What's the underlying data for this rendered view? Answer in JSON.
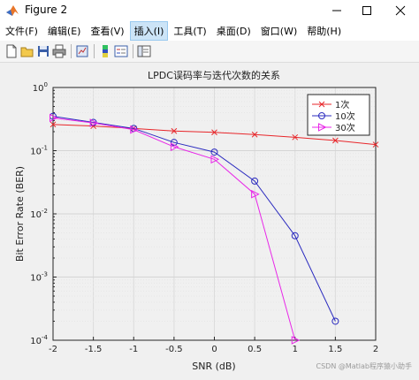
{
  "window": {
    "title": "Figure 2",
    "minimize_icon": "minimize-icon",
    "maximize_icon": "maximize-icon",
    "close_icon": "close-icon"
  },
  "menu": [
    {
      "label": "文件(F)"
    },
    {
      "label": "编辑(E)"
    },
    {
      "label": "查看(V)"
    },
    {
      "label": "插入(I)",
      "active": true
    },
    {
      "label": "工具(T)"
    },
    {
      "label": "桌面(D)"
    },
    {
      "label": "窗口(W)"
    },
    {
      "label": "帮助(H)"
    }
  ],
  "toolbar": {
    "buttons": [
      "new-figure-icon",
      "open-file-icon",
      "save-icon",
      "print-icon",
      "link-plot-icon",
      "insert-colorbar-icon",
      "insert-legend-icon",
      "property-editor-icon"
    ]
  },
  "colors": {
    "red": "#e8262a",
    "blue": "#2b2bbf",
    "magenta": "#e827e8"
  },
  "watermark": "CSDN @Matlab程序猿小助手",
  "chart_data": {
    "type": "line",
    "title": "LPDC误码率与迭代次数的关系",
    "xlabel": "SNR (dB)",
    "ylabel": "Bit Error Rate (BER)",
    "xlim": [
      -2,
      2
    ],
    "ylim": [
      0.0001,
      1
    ],
    "yscale": "log",
    "grid": true,
    "legend_position": "top-right",
    "x_ticks": [
      "-2",
      "-1.5",
      "-1",
      "-0.5",
      "0",
      "0.5",
      "1",
      "1.5",
      "2"
    ],
    "y_ticks": [
      {
        "base": "10",
        "exp": "0"
      },
      {
        "base": "10",
        "exp": "-1"
      },
      {
        "base": "10",
        "exp": "-2"
      },
      {
        "base": "10",
        "exp": "-3"
      },
      {
        "base": "10",
        "exp": "-4"
      }
    ],
    "series": [
      {
        "name": "1次",
        "marker": "x",
        "color": "#e8262a",
        "x": [
          -2,
          -1.5,
          -1,
          -0.5,
          0,
          0.5,
          1,
          1.5,
          2
        ],
        "y": [
          0.26,
          0.245,
          0.225,
          0.205,
          0.195,
          0.18,
          0.163,
          0.145,
          0.125
        ]
      },
      {
        "name": "10次",
        "marker": "o",
        "color": "#2b2bbf",
        "x": [
          -2,
          -1.5,
          -1,
          -0.5,
          0,
          0.5,
          1,
          1.5
        ],
        "y": [
          0.35,
          0.28,
          0.225,
          0.135,
          0.095,
          0.033,
          0.0045,
          0.0002
        ]
      },
      {
        "name": "30次",
        "marker": "triangle-right",
        "color": "#e827e8",
        "x": [
          -2,
          -1.5,
          -1,
          -0.5,
          0,
          0.5,
          1
        ],
        "y": [
          0.33,
          0.275,
          0.215,
          0.115,
          0.073,
          0.0205,
          0.0001
        ]
      }
    ]
  }
}
